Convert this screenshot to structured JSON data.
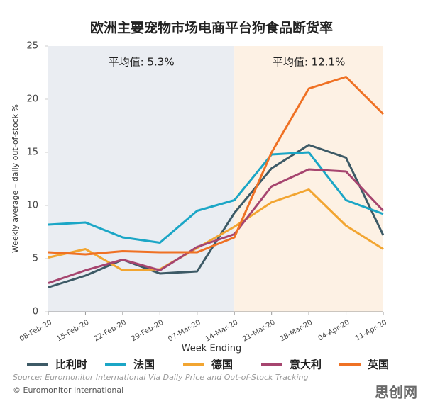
{
  "chart_data": {
    "type": "line",
    "title": "欧洲主要宠物市场电商平台狗食品断货率",
    "x_label": "Week Ending",
    "y_label": "Weekly average – daily out-of-stock %",
    "categories": [
      "08-Feb-20",
      "15-Feb-20",
      "22-Feb-20",
      "29-Feb-20",
      "07-Mar-20",
      "14-Mar-20",
      "21-Mar-20",
      "28-Mar-20",
      "04-Apr-20",
      "11-Apr-20"
    ],
    "series": [
      {
        "name": "比利时",
        "color": "#3d5a66",
        "values": [
          2.3,
          3.4,
          4.9,
          3.6,
          3.8,
          9.3,
          13.5,
          15.7,
          14.5,
          7.2
        ]
      },
      {
        "name": "法国",
        "color": "#1ba6c6",
        "values": [
          8.2,
          8.4,
          7.0,
          6.5,
          9.5,
          10.5,
          14.8,
          15.0,
          10.5,
          9.2
        ]
      },
      {
        "name": "德国",
        "color": "#f2a531",
        "values": [
          5.1,
          5.9,
          3.9,
          4.0,
          6.0,
          8.0,
          10.3,
          11.5,
          8.1,
          5.9
        ]
      },
      {
        "name": "意大利",
        "color": "#a6456f",
        "values": [
          2.7,
          3.9,
          4.9,
          3.9,
          6.1,
          7.3,
          11.8,
          13.4,
          13.2,
          9.5
        ]
      },
      {
        "name": "英国",
        "color": "#ef7124",
        "values": [
          5.6,
          5.4,
          5.7,
          5.6,
          5.6,
          7.0,
          15.0,
          21.0,
          22.1,
          18.6
        ]
      }
    ],
    "ylim": [
      0,
      25
    ],
    "yticks": [
      0,
      5,
      10,
      15,
      20,
      25
    ],
    "shaded_regions": [
      {
        "from": "08-Feb-20",
        "to": "14-Mar-20",
        "color": "#eaedf2",
        "label": "平均值: 5.3%"
      },
      {
        "from": "14-Mar-20",
        "to": "11-Apr-20",
        "color": "#fdf1e4",
        "label": "平均值: 12.1%"
      }
    ],
    "source": "Source: Euromonitor International Via Daily Price and Out-of-Stock Tracking",
    "copyright": "© Euromonitor International",
    "watermark": "思创网"
  }
}
